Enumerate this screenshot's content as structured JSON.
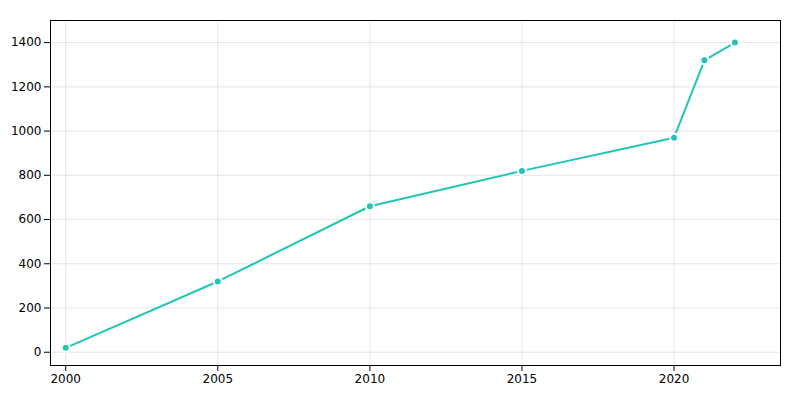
{
  "chart_data": {
    "type": "line",
    "x": [
      2000,
      2005,
      2010,
      2015,
      2020,
      2021,
      2022
    ],
    "values": [
      20,
      320,
      660,
      820,
      970,
      1320,
      1400
    ],
    "color": "#20c5b5",
    "marker": "circle",
    "xlim": [
      1999.5,
      2023.5
    ],
    "xticks": [
      2000,
      2005,
      2010,
      2015,
      2020
    ],
    "ylim": [
      -60,
      1500
    ],
    "yticks": [
      0,
      200,
      400,
      600,
      800,
      1000,
      1200,
      1400
    ],
    "grid": true
  }
}
